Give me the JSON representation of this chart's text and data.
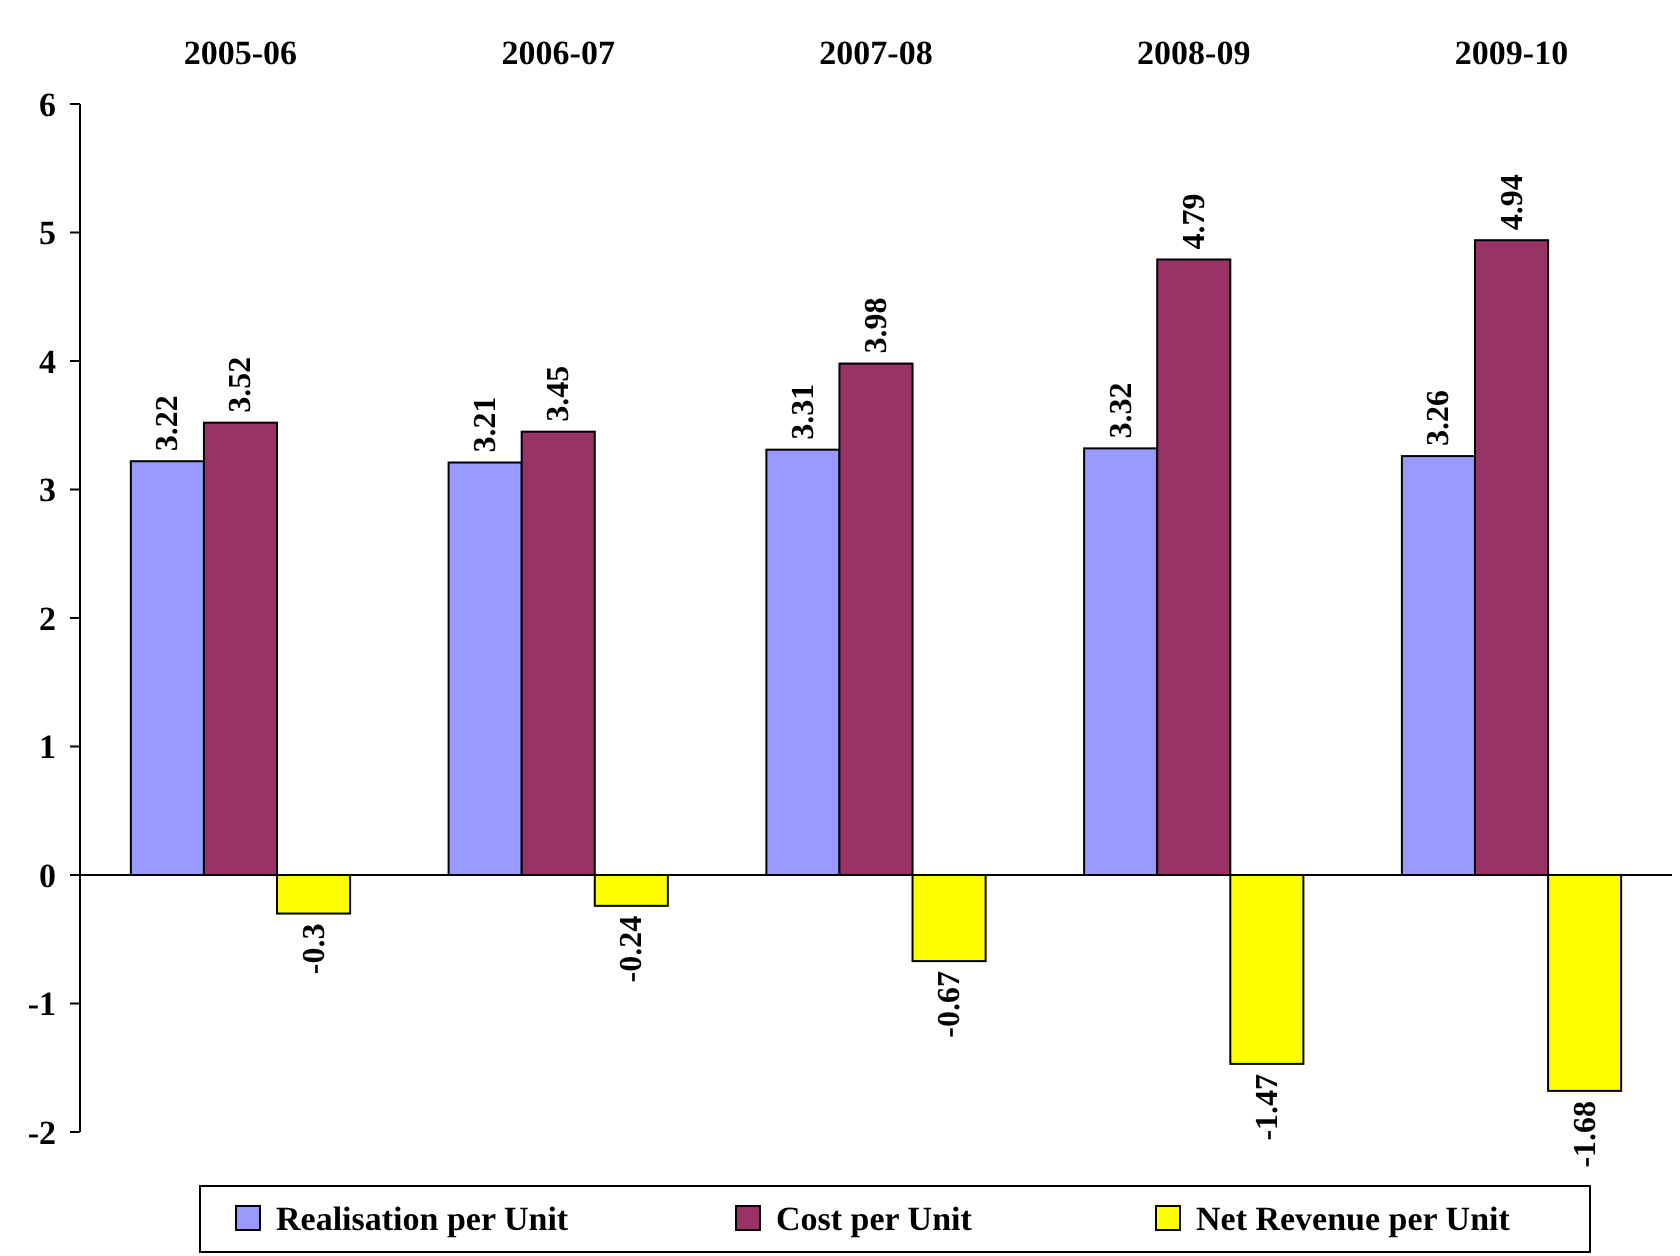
{
  "chart_data": {
    "type": "bar",
    "categories": [
      "2005-06",
      "2006-07",
      "2007-08",
      "2008-09",
      "2009-10"
    ],
    "series": [
      {
        "name": "Realisation per Unit",
        "color": "#9999ff",
        "values": [
          3.22,
          3.21,
          3.31,
          3.32,
          3.26
        ]
      },
      {
        "name": "Cost per Unit",
        "color": "#993366",
        "values": [
          3.52,
          3.45,
          3.98,
          4.79,
          4.94
        ]
      },
      {
        "name": "Net Revenue per Unit",
        "color": "#ffff00",
        "values": [
          -0.3,
          -0.24,
          -0.67,
          -1.47,
          -1.68
        ]
      }
    ],
    "ylim": [
      -2,
      6
    ],
    "yticks": [
      -2,
      -1,
      0,
      1,
      2,
      3,
      4,
      5,
      6
    ],
    "legend": "bottom",
    "data_labels": true
  }
}
